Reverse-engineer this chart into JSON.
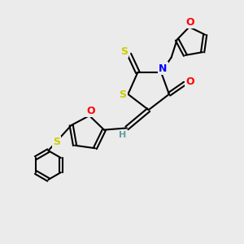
{
  "bg_color": "#ebebeb",
  "bond_color": "#000000",
  "bond_width": 1.5,
  "atom_colors": {
    "S": "#cccc00",
    "N": "#0000ff",
    "O": "#ff0000",
    "H": "#5f9ea0"
  }
}
